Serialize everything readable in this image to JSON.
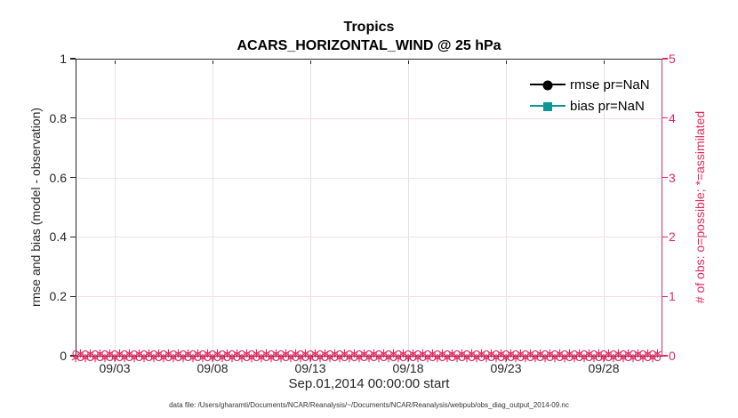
{
  "figure": {
    "title": "Tropics",
    "subtitle": "ACARS_HORIZONTAL_WIND @ 25 hPa",
    "xlabel": "Sep.01,2014 00:00:00 start",
    "ylabel_left": "rmse and bias (model - observation)",
    "ylabel_right": "# of obs: o=possible; *=assimilated",
    "footer": "data file: /Users/gharamti/Documents/NCAR/Reanalysis/~/Documents/NCAR/Reanalysis/webpub/obs_diag_output_2014-09.nc"
  },
  "legend": {
    "items": [
      {
        "label": "rmse pr=NaN",
        "marker": "circle",
        "color": "#000000"
      },
      {
        "label": "bias pr=NaN",
        "marker": "square",
        "color": "#0A9696"
      }
    ]
  },
  "colors": {
    "axis_dark": "#262626",
    "obs_pink": "#E02A60",
    "bias_teal": "#0A9696",
    "grid_gray": "#e3e3e3",
    "grid_pink": "#f7dce6"
  },
  "chart_data": {
    "type": "line",
    "title": "Tropics",
    "subtitle": "ACARS_HORIZONTAL_WIND @ 25 hPa",
    "xlabel": "Sep.01,2014 00:00:00 start",
    "ylabel_left": "rmse and bias (model - observation)",
    "ylabel_right": "# of obs: o=possible; *=assimilated",
    "xlim_days": [
      1,
      31
    ],
    "x_ticks": [
      {
        "day": 3,
        "label": "09/03"
      },
      {
        "day": 8,
        "label": "09/08"
      },
      {
        "day": 13,
        "label": "09/13"
      },
      {
        "day": 18,
        "label": "09/18"
      },
      {
        "day": 23,
        "label": "09/23"
      },
      {
        "day": 28,
        "label": "09/28"
      }
    ],
    "ylim_left": [
      0,
      1
    ],
    "yticks_left": [
      "0",
      "0.2",
      "0.4",
      "0.6",
      "0.8",
      "1"
    ],
    "ylim_right": [
      0,
      5
    ],
    "yticks_right": [
      "0",
      "1",
      "2",
      "3",
      "4",
      "5"
    ],
    "grid": true,
    "legend_position": "top-right",
    "series": [
      {
        "name": "rmse pr=NaN",
        "axis": "left",
        "marker": "filled-circle",
        "color": "#000000",
        "values": "NaN - no curve plotted"
      },
      {
        "name": "bias pr=NaN",
        "axis": "left",
        "marker": "filled-square",
        "color": "#0A9696",
        "values": "NaN - no curve plotted"
      },
      {
        "name": "# of obs possible (o markers)",
        "axis": "right",
        "marker": "o",
        "color": "#E02A60",
        "start_day": 1,
        "end_day": 30.75,
        "step_days": 0.25,
        "plotted_value": 0
      },
      {
        "name": "# of obs assimilated (* markers)",
        "axis": "right",
        "marker": "*",
        "color": "#E02A60",
        "start_day": 1,
        "end_day": 30.75,
        "step_days": 0.25,
        "plotted_value": 0
      }
    ]
  }
}
